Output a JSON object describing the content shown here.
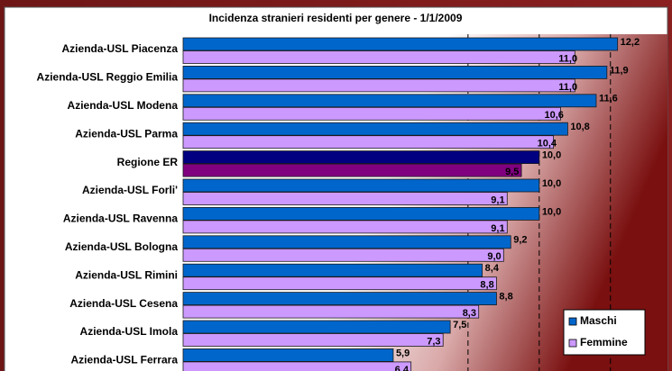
{
  "chart_data": {
    "type": "barh",
    "title": "Incidenza stranieri residenti per genere - 1/1/2009",
    "categories": [
      "Azienda-USL Piacenza",
      "Azienda-USL Reggio Emilia",
      "Azienda-USL Modena",
      "Azienda-USL Parma",
      "Regione ER",
      "Azienda-USL Forli'",
      "Azienda-USL Ravenna",
      "Azienda-USL Bologna",
      "Azienda-USL Rimini",
      "Azienda-USL Cesena",
      "Azienda-USL Imola",
      "Azienda-USL Ferrara"
    ],
    "series": [
      {
        "name": "Maschi",
        "color": "#0066cc",
        "colors": [
          "#0066cc",
          "#0066cc",
          "#0066cc",
          "#0066cc",
          "#000080",
          "#0066cc",
          "#0066cc",
          "#0066cc",
          "#0066cc",
          "#0066cc",
          "#0066cc",
          "#0066cc"
        ],
        "values": [
          12.2,
          11.9,
          11.6,
          10.8,
          10.0,
          10.0,
          10.0,
          9.2,
          8.4,
          8.8,
          7.5,
          5.9
        ],
        "value_labels": [
          "12,2",
          "11,9",
          "11,6",
          "10,8",
          "10,0",
          "10,0",
          "10,0",
          "9,2",
          "8,4",
          "8,8",
          "7,5",
          "5,9"
        ]
      },
      {
        "name": "Femmine",
        "color": "#cc99ff",
        "colors": [
          "#cc99ff",
          "#cc99ff",
          "#cc99ff",
          "#cc99ff",
          "#800080",
          "#cc99ff",
          "#cc99ff",
          "#cc99ff",
          "#cc99ff",
          "#cc99ff",
          "#cc99ff",
          "#cc99ff"
        ],
        "values": [
          11.0,
          11.0,
          10.6,
          10.4,
          9.5,
          9.1,
          9.1,
          9.0,
          8.8,
          8.3,
          7.3,
          6.4
        ],
        "value_labels": [
          "11,0",
          "11,0",
          "10,6",
          "10,4",
          "9,5",
          "9,1",
          "9,1",
          "9,0",
          "8,8",
          "8,3",
          "7,3",
          "6,4"
        ]
      }
    ],
    "xlim": [
      0,
      13.5
    ],
    "xticks": [
      8,
      10,
      12
    ],
    "grid": true,
    "legend": "lower right"
  }
}
